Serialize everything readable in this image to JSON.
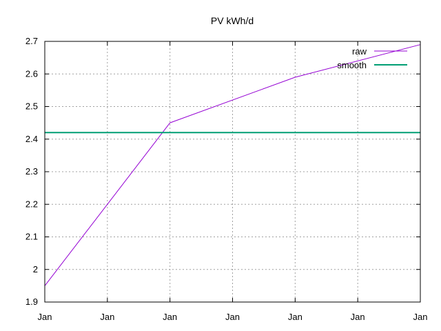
{
  "chart_data": {
    "type": "line",
    "title": "PV kWh/d",
    "xlabel": "",
    "ylabel": "",
    "x_ticks": [
      "Jan",
      "Jan",
      "Jan",
      "Jan",
      "Jan",
      "Jan",
      "Jan"
    ],
    "ylim": [
      1.9,
      2.7
    ],
    "y_ticks": [
      "1.9",
      "2",
      "2.1",
      "2.2",
      "2.3",
      "2.4",
      "2.5",
      "2.6",
      "2.7"
    ],
    "grid": true,
    "legend_position": "top-right",
    "series": [
      {
        "name": "raw",
        "color": "#9400d3",
        "x_index": [
          0,
          2,
          4,
          6
        ],
        "values": [
          1.95,
          2.45,
          2.59,
          2.69
        ]
      },
      {
        "name": "smooth",
        "color": "#009e73",
        "x_index": [
          0,
          6
        ],
        "values": [
          2.42,
          2.42
        ]
      }
    ]
  }
}
